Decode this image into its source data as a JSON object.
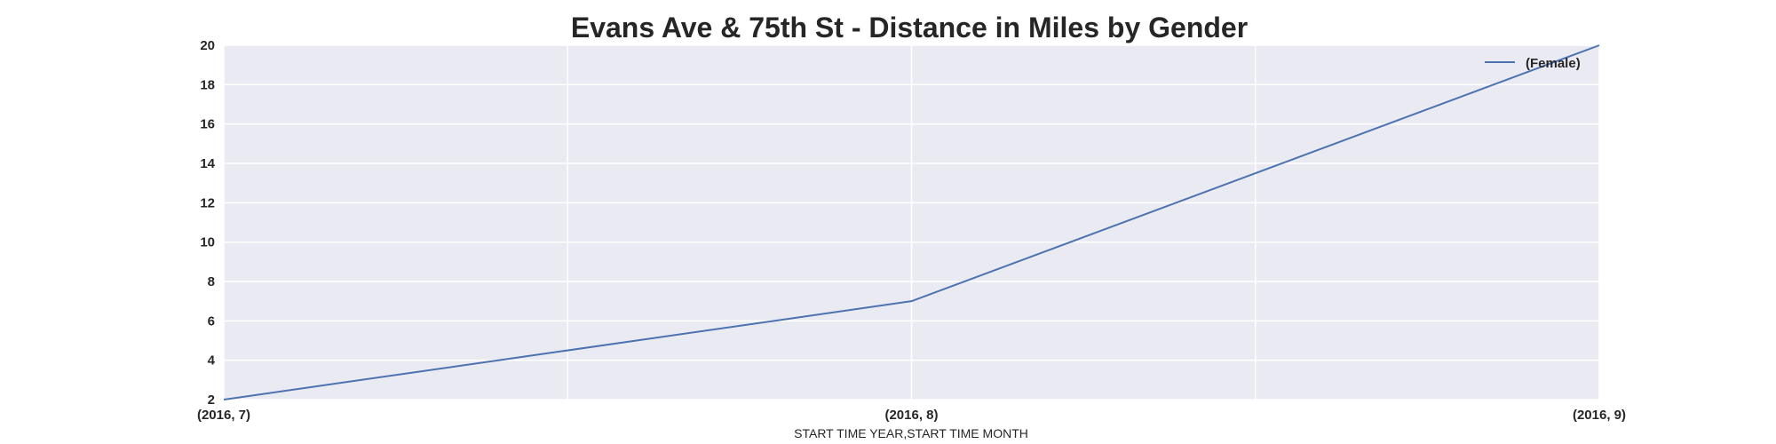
{
  "chart_data": {
    "type": "line",
    "title": "Evans Ave & 75th St - Distance in Miles by Gender",
    "xlabel": "START TIME YEAR,START TIME MONTH",
    "ylabel": "",
    "categories": [
      "(2016, 7)",
      "(2016, 8)",
      "(2016, 9)"
    ],
    "ylim": [
      2,
      20
    ],
    "yticks": [
      2,
      4,
      6,
      8,
      10,
      12,
      14,
      16,
      18,
      20
    ],
    "series": [
      {
        "name": "(Female)",
        "values": [
          2,
          7,
          20
        ],
        "color": "#4c72b0"
      }
    ],
    "grid": true,
    "legend_position": "top-right",
    "background_color": "#eaeaf2",
    "grid_color": "#ffffff"
  }
}
